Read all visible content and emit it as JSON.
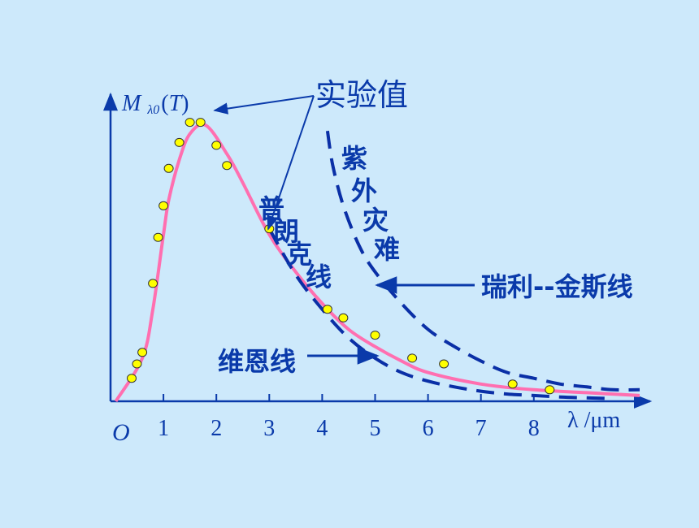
{
  "chart_data": {
    "type": "line",
    "title": "",
    "xlabel": "λ /μm",
    "ylabel": "M λ0 (T)",
    "origin_label": "O",
    "xlim": [
      0,
      10.2
    ],
    "ylim": [
      0,
      1.0
    ],
    "x_ticks": [
      1,
      2,
      3,
      4,
      5,
      6,
      7,
      8
    ],
    "grid": false,
    "colors": {
      "axis": "#0a3aaa",
      "text": "#0a3aaa",
      "planck": "#ff6fb0",
      "dashed": "#0a2fa6",
      "points_fill": "#ffff00",
      "points_stroke": "#333333"
    },
    "annotations": {
      "experimental": "实验值",
      "planck": [
        "普",
        "朗",
        "克",
        "线"
      ],
      "uv": [
        "紫",
        "外",
        "灾",
        "难"
      ],
      "rayleigh_jeans": "瑞利--金斯线",
      "wien": "维恩线"
    },
    "experimental_points": {
      "x": [
        0.4,
        0.5,
        0.6,
        0.8,
        0.9,
        1.0,
        1.1,
        1.3,
        1.5,
        1.7,
        2.0,
        2.2,
        3.0,
        4.1,
        4.4,
        5.0,
        5.7,
        6.3,
        7.6,
        8.3
      ],
      "y": [
        0.08,
        0.13,
        0.17,
        0.41,
        0.57,
        0.68,
        0.81,
        0.9,
        0.97,
        0.97,
        0.89,
        0.82,
        0.6,
        0.32,
        0.29,
        0.23,
        0.15,
        0.13,
        0.06,
        0.04
      ]
    },
    "series": [
      {
        "name": "普朗克线",
        "style": "solid",
        "x": [
          0.1,
          0.6,
          0.8,
          1.0,
          1.1,
          1.3,
          1.5,
          1.8,
          2.2,
          2.5,
          3.0,
          3.5,
          4.0,
          4.5,
          5.0,
          5.5,
          6.0,
          7.0,
          8.0,
          9.0,
          10.0
        ],
        "y": [
          0.0,
          0.15,
          0.32,
          0.58,
          0.7,
          0.84,
          0.93,
          0.96,
          0.86,
          0.76,
          0.58,
          0.45,
          0.34,
          0.25,
          0.19,
          0.14,
          0.1,
          0.06,
          0.04,
          0.03,
          0.02
        ]
      },
      {
        "name": "维恩线",
        "style": "dashed",
        "x": [
          3.0,
          3.5,
          4.0,
          4.5,
          5.0,
          5.5,
          6.0,
          6.5,
          7.0,
          7.5,
          8.0,
          8.5,
          9.0,
          9.4
        ],
        "y": [
          0.6,
          0.44,
          0.32,
          0.22,
          0.15,
          0.1,
          0.07,
          0.05,
          0.035,
          0.025,
          0.02,
          0.015,
          0.012,
          0.01
        ]
      },
      {
        "name": "瑞利--金斯线",
        "style": "dashed",
        "x": [
          4.1,
          4.2,
          4.4,
          4.7,
          5.0,
          5.5,
          6.0,
          6.5,
          7.0,
          7.5,
          8.0,
          8.5,
          9.0,
          9.5,
          10.0
        ],
        "y": [
          0.94,
          0.82,
          0.68,
          0.54,
          0.45,
          0.34,
          0.25,
          0.19,
          0.14,
          0.1,
          0.08,
          0.06,
          0.05,
          0.04,
          0.04
        ]
      }
    ]
  }
}
